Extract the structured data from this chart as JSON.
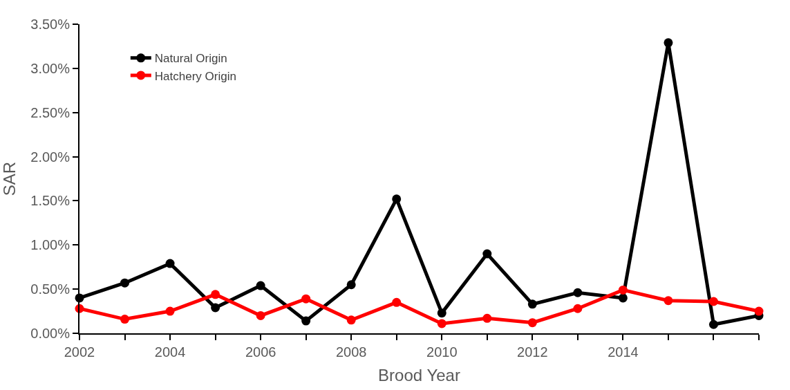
{
  "chart_data": {
    "type": "line",
    "xlabel": "Brood Year",
    "ylabel": "SAR",
    "x": [
      2002,
      2003,
      2004,
      2005,
      2006,
      2007,
      2008,
      2009,
      2010,
      2011,
      2012,
      2013,
      2014,
      2015,
      2016,
      2017
    ],
    "series": [
      {
        "name": "Natural Origin",
        "color": "#000000",
        "values": [
          0.4,
          0.57,
          0.79,
          0.29,
          0.54,
          0.14,
          0.55,
          1.52,
          0.23,
          0.9,
          0.33,
          0.46,
          0.4,
          3.29,
          0.1,
          0.2
        ]
      },
      {
        "name": "Hatchery Origin",
        "color": "#ff0000",
        "values": [
          0.28,
          0.16,
          0.25,
          0.44,
          0.2,
          0.39,
          0.15,
          0.35,
          0.11,
          0.17,
          0.12,
          0.28,
          0.49,
          0.37,
          0.36,
          0.25
        ]
      }
    ],
    "xlim": [
      2002,
      2017
    ],
    "xticks": [
      2002,
      {
        "value": 2003,
        "label": null
      },
      2004,
      {
        "value": 2005,
        "label": null
      },
      2006,
      {
        "value": 2007,
        "label": null
      },
      2008,
      {
        "value": 2009,
        "label": null
      },
      2010,
      {
        "value": 2011,
        "label": null
      },
      2012,
      {
        "value": 2013,
        "label": null
      },
      2014,
      {
        "value": 2015,
        "label": null
      },
      {
        "value": 2016,
        "label": null
      },
      {
        "value": 2017,
        "label": null
      }
    ],
    "ylim": [
      0,
      3.5
    ],
    "yticks": [
      {
        "value": 0,
        "label": "0.00%"
      },
      {
        "value": 0.5,
        "label": "0.50%"
      },
      {
        "value": 1,
        "label": "1.00%"
      },
      {
        "value": 1.5,
        "label": "1.50%"
      },
      {
        "value": 2,
        "label": "2.00%"
      },
      {
        "value": 2.5,
        "label": "2.50%"
      },
      {
        "value": 3,
        "label": "3.00%"
      },
      {
        "value": 3.5,
        "label": "3.50%"
      }
    ],
    "legend": "top left",
    "marker": "circle",
    "line_style": "solid"
  }
}
